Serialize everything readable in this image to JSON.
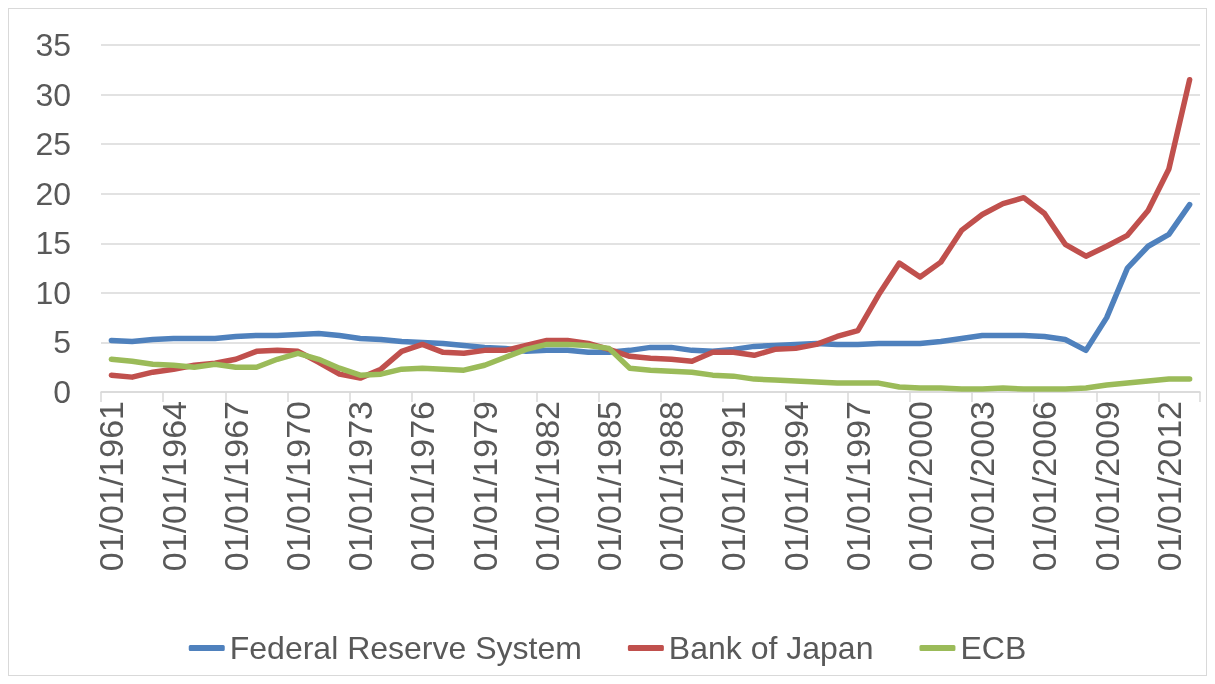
{
  "chart_data": {
    "type": "line",
    "categories": [
      "01/01/1961",
      null,
      null,
      "01/01/1964",
      null,
      null,
      "01/01/1967",
      null,
      null,
      "01/01/1970",
      null,
      null,
      "01/01/1973",
      null,
      null,
      "01/01/1976",
      null,
      null,
      "01/01/1979",
      null,
      null,
      "01/01/1982",
      null,
      null,
      "01/01/1985",
      null,
      null,
      "01/01/1988",
      null,
      null,
      "01/01/1991",
      null,
      null,
      "01/01/1994",
      null,
      null,
      "01/01/1997",
      null,
      null,
      "01/01/2000",
      null,
      null,
      "01/01/2003",
      null,
      null,
      "01/01/2006",
      null,
      null,
      "01/01/2009",
      null,
      null,
      "01/01/2012",
      null
    ],
    "series": [
      {
        "name": "Federal Reserve System",
        "color": "#4f81bd",
        "values": [
          5.2,
          5.1,
          5.3,
          5.4,
          5.4,
          5.4,
          5.6,
          5.7,
          5.7,
          5.8,
          5.9,
          5.7,
          5.4,
          5.3,
          5.1,
          5.0,
          4.9,
          4.7,
          4.5,
          4.4,
          4.1,
          4.2,
          4.2,
          4.0,
          4.0,
          4.2,
          4.5,
          4.5,
          4.2,
          4.1,
          4.3,
          4.6,
          4.7,
          4.8,
          4.9,
          4.8,
          4.8,
          4.9,
          4.9,
          4.9,
          5.1,
          5.4,
          5.7,
          5.7,
          5.7,
          5.6,
          5.3,
          4.2,
          7.5,
          12.5,
          14.7,
          15.9,
          18.9
        ]
      },
      {
        "name": "Bank of Japan",
        "color": "#c0504d",
        "values": [
          1.7,
          1.5,
          2.0,
          2.3,
          2.7,
          2.9,
          3.3,
          4.1,
          4.2,
          4.1,
          3.0,
          1.8,
          1.4,
          2.3,
          4.1,
          4.8,
          4.0,
          3.9,
          4.2,
          4.2,
          4.7,
          5.2,
          5.2,
          4.9,
          4.3,
          3.6,
          3.4,
          3.3,
          3.1,
          4.0,
          4.0,
          3.7,
          4.3,
          4.4,
          4.8,
          5.6,
          6.2,
          9.8,
          13.0,
          11.6,
          13.1,
          16.3,
          17.9,
          19.0,
          19.6,
          18.0,
          14.9,
          13.7,
          14.7,
          15.8,
          18.3,
          22.5,
          31.5
        ]
      },
      {
        "name": "ECB",
        "color": "#9bbb59",
        "values": [
          3.3,
          3.1,
          2.8,
          2.7,
          2.5,
          2.8,
          2.5,
          2.5,
          3.3,
          3.9,
          3.3,
          2.4,
          1.7,
          1.8,
          2.3,
          2.4,
          2.3,
          2.2,
          2.7,
          3.5,
          4.3,
          4.8,
          4.8,
          4.7,
          4.4,
          2.4,
          2.2,
          2.1,
          2.0,
          1.7,
          1.6,
          1.3,
          1.2,
          1.1,
          1.0,
          0.9,
          0.9,
          0.9,
          0.5,
          0.4,
          0.4,
          0.3,
          0.3,
          0.4,
          0.3,
          0.3,
          0.3,
          0.4,
          0.7,
          0.9,
          1.1,
          1.3,
          1.3
        ]
      }
    ],
    "ylim": [
      0,
      35
    ],
    "yticks": [
      0,
      5,
      10,
      15,
      20,
      25,
      30,
      35
    ],
    "grid": "y",
    "legend": "bottom",
    "marker": "none",
    "line_style": "solid"
  }
}
